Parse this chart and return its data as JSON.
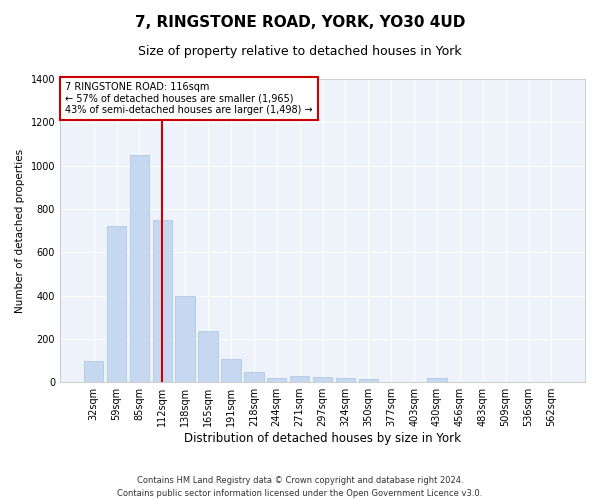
{
  "title": "7, RINGSTONE ROAD, YORK, YO30 4UD",
  "subtitle": "Size of property relative to detached houses in York",
  "xlabel": "Distribution of detached houses by size in York",
  "ylabel": "Number of detached properties",
  "categories": [
    "32sqm",
    "59sqm",
    "85sqm",
    "112sqm",
    "138sqm",
    "165sqm",
    "191sqm",
    "218sqm",
    "244sqm",
    "271sqm",
    "297sqm",
    "324sqm",
    "350sqm",
    "377sqm",
    "403sqm",
    "430sqm",
    "456sqm",
    "483sqm",
    "509sqm",
    "536sqm",
    "562sqm"
  ],
  "values": [
    100,
    720,
    1050,
    750,
    400,
    235,
    105,
    45,
    20,
    30,
    25,
    20,
    15,
    0,
    0,
    20,
    0,
    0,
    0,
    0,
    0
  ],
  "bar_color": "#c5d8f0",
  "bar_edge_color": "#a8c4e0",
  "vline_x": 3.0,
  "vline_color": "#cc0000",
  "annotation_line1": "7 RINGSTONE ROAD: 116sqm",
  "annotation_line2": "← 57% of detached houses are smaller (1,965)",
  "annotation_line3": "43% of semi-detached houses are larger (1,498) →",
  "annotation_box_color": "#ffffff",
  "annotation_box_edge": "#cc0000",
  "ylim": [
    0,
    1400
  ],
  "yticks": [
    0,
    200,
    400,
    600,
    800,
    1000,
    1200,
    1400
  ],
  "footer_line1": "Contains HM Land Registry data © Crown copyright and database right 2024.",
  "footer_line2": "Contains public sector information licensed under the Open Government Licence v3.0.",
  "bg_color": "#ffffff",
  "plot_bg_color": "#eef2fb",
  "grid_color": "#ffffff",
  "title_fontsize": 11,
  "subtitle_fontsize": 9,
  "xlabel_fontsize": 8.5,
  "ylabel_fontsize": 7.5,
  "tick_fontsize": 7,
  "footer_fontsize": 6,
  "annotation_fontsize": 7
}
